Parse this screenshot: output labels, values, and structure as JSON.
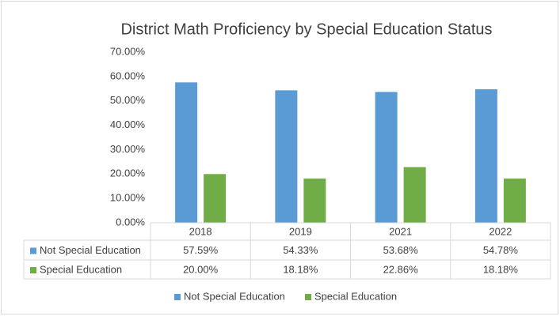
{
  "chart_data": {
    "type": "bar",
    "title": "District Math Proficiency by Special Education Status",
    "categories": [
      "2018",
      "2019",
      "2021",
      "2022"
    ],
    "series": [
      {
        "name": "Not Special Education",
        "color": "#5b9bd5",
        "values": [
          57.59,
          54.33,
          53.68,
          54.78
        ],
        "value_labels": [
          "57.59%",
          "54.33%",
          "53.68%",
          "54.78%"
        ]
      },
      {
        "name": "Special Education",
        "color": "#70ad47",
        "values": [
          20.0,
          18.18,
          22.86,
          18.18
        ],
        "value_labels": [
          "20.00%",
          "18.18%",
          "22.86%",
          "18.18%"
        ]
      }
    ],
    "ylim": [
      0,
      70
    ],
    "yticks": [
      {
        "value": 0,
        "label": "0.00%"
      },
      {
        "value": 10,
        "label": "10.00%"
      },
      {
        "value": 20,
        "label": "20.00%"
      },
      {
        "value": 30,
        "label": "30.00%"
      },
      {
        "value": 40,
        "label": "40.00%"
      },
      {
        "value": 50,
        "label": "50.00%"
      },
      {
        "value": 60,
        "label": "60.00%"
      },
      {
        "value": 70,
        "label": "70.00%"
      }
    ],
    "grid": false,
    "data_table": true,
    "legend": "bottom"
  }
}
